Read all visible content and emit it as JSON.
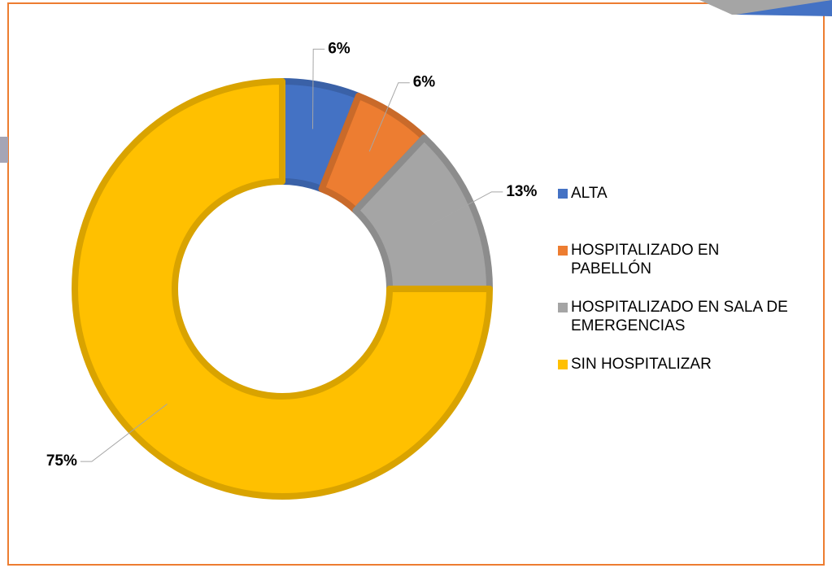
{
  "chart_data": {
    "type": "donut",
    "categories": [
      "ALTA",
      "HOSPITALIZADO EN PABELLÓN",
      "HOSPITALIZADO EN SALA DE EMERGENCIAS",
      "SIN HOSPITALIZAR"
    ],
    "values": [
      6,
      6,
      13,
      75
    ],
    "value_labels": [
      "6%",
      "6%",
      "13%",
      "75%"
    ],
    "colors": [
      "#4472c4",
      "#ed7d31",
      "#a5a5a5",
      "#ffc000"
    ],
    "legend": "right"
  }
}
